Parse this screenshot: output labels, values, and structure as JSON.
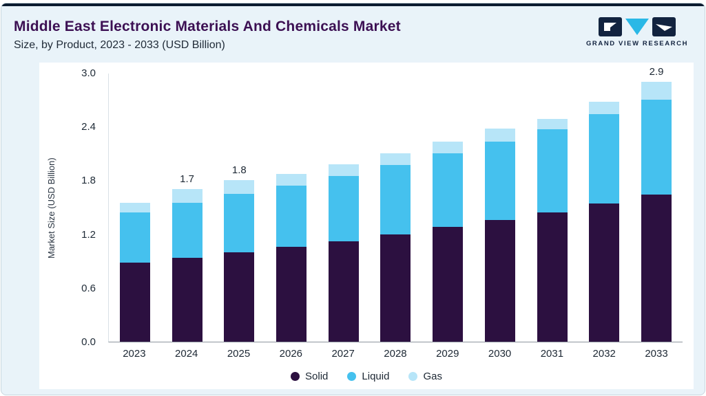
{
  "header": {
    "title": "Middle East Electronic Materials And Chemicals Market",
    "subtitle": "Size, by Product, 2023 - 2033 (USD Billion)"
  },
  "logo": {
    "text": "GRAND VIEW RESEARCH",
    "navy": "#12233f",
    "cyan": "#2ab8e6"
  },
  "chart_data": {
    "type": "bar",
    "stacked": true,
    "title": "Middle East Electronic Materials And Chemicals Market Size, by Product, 2023 - 2033 (USD Billion)",
    "categories": [
      "2023",
      "2024",
      "2025",
      "2026",
      "2027",
      "2028",
      "2029",
      "2030",
      "2031",
      "2032",
      "2033"
    ],
    "series": [
      {
        "name": "Solid",
        "color": "#2c1040",
        "values": [
          0.88,
          0.94,
          1.0,
          1.06,
          1.12,
          1.2,
          1.28,
          1.36,
          1.44,
          1.54,
          1.64
        ]
      },
      {
        "name": "Liquid",
        "color": "#45c1ee",
        "values": [
          0.56,
          0.61,
          0.65,
          0.68,
          0.73,
          0.77,
          0.82,
          0.87,
          0.93,
          1.0,
          1.06
        ]
      },
      {
        "name": "Gas",
        "color": "#b7e5f8",
        "values": [
          0.11,
          0.15,
          0.15,
          0.13,
          0.13,
          0.13,
          0.13,
          0.15,
          0.12,
          0.14,
          0.2
        ]
      }
    ],
    "annotations": {
      "2024": "1.7",
      "2025": "1.8",
      "2033": "2.9"
    },
    "xlabel": "",
    "ylabel": "Market Size (USD Billion)",
    "ylim": [
      0.0,
      3.0
    ],
    "yticks": [
      "0.0",
      "0.6",
      "1.2",
      "1.8",
      "2.4",
      "3.0"
    ],
    "grid": false,
    "legend_position": "bottom"
  }
}
